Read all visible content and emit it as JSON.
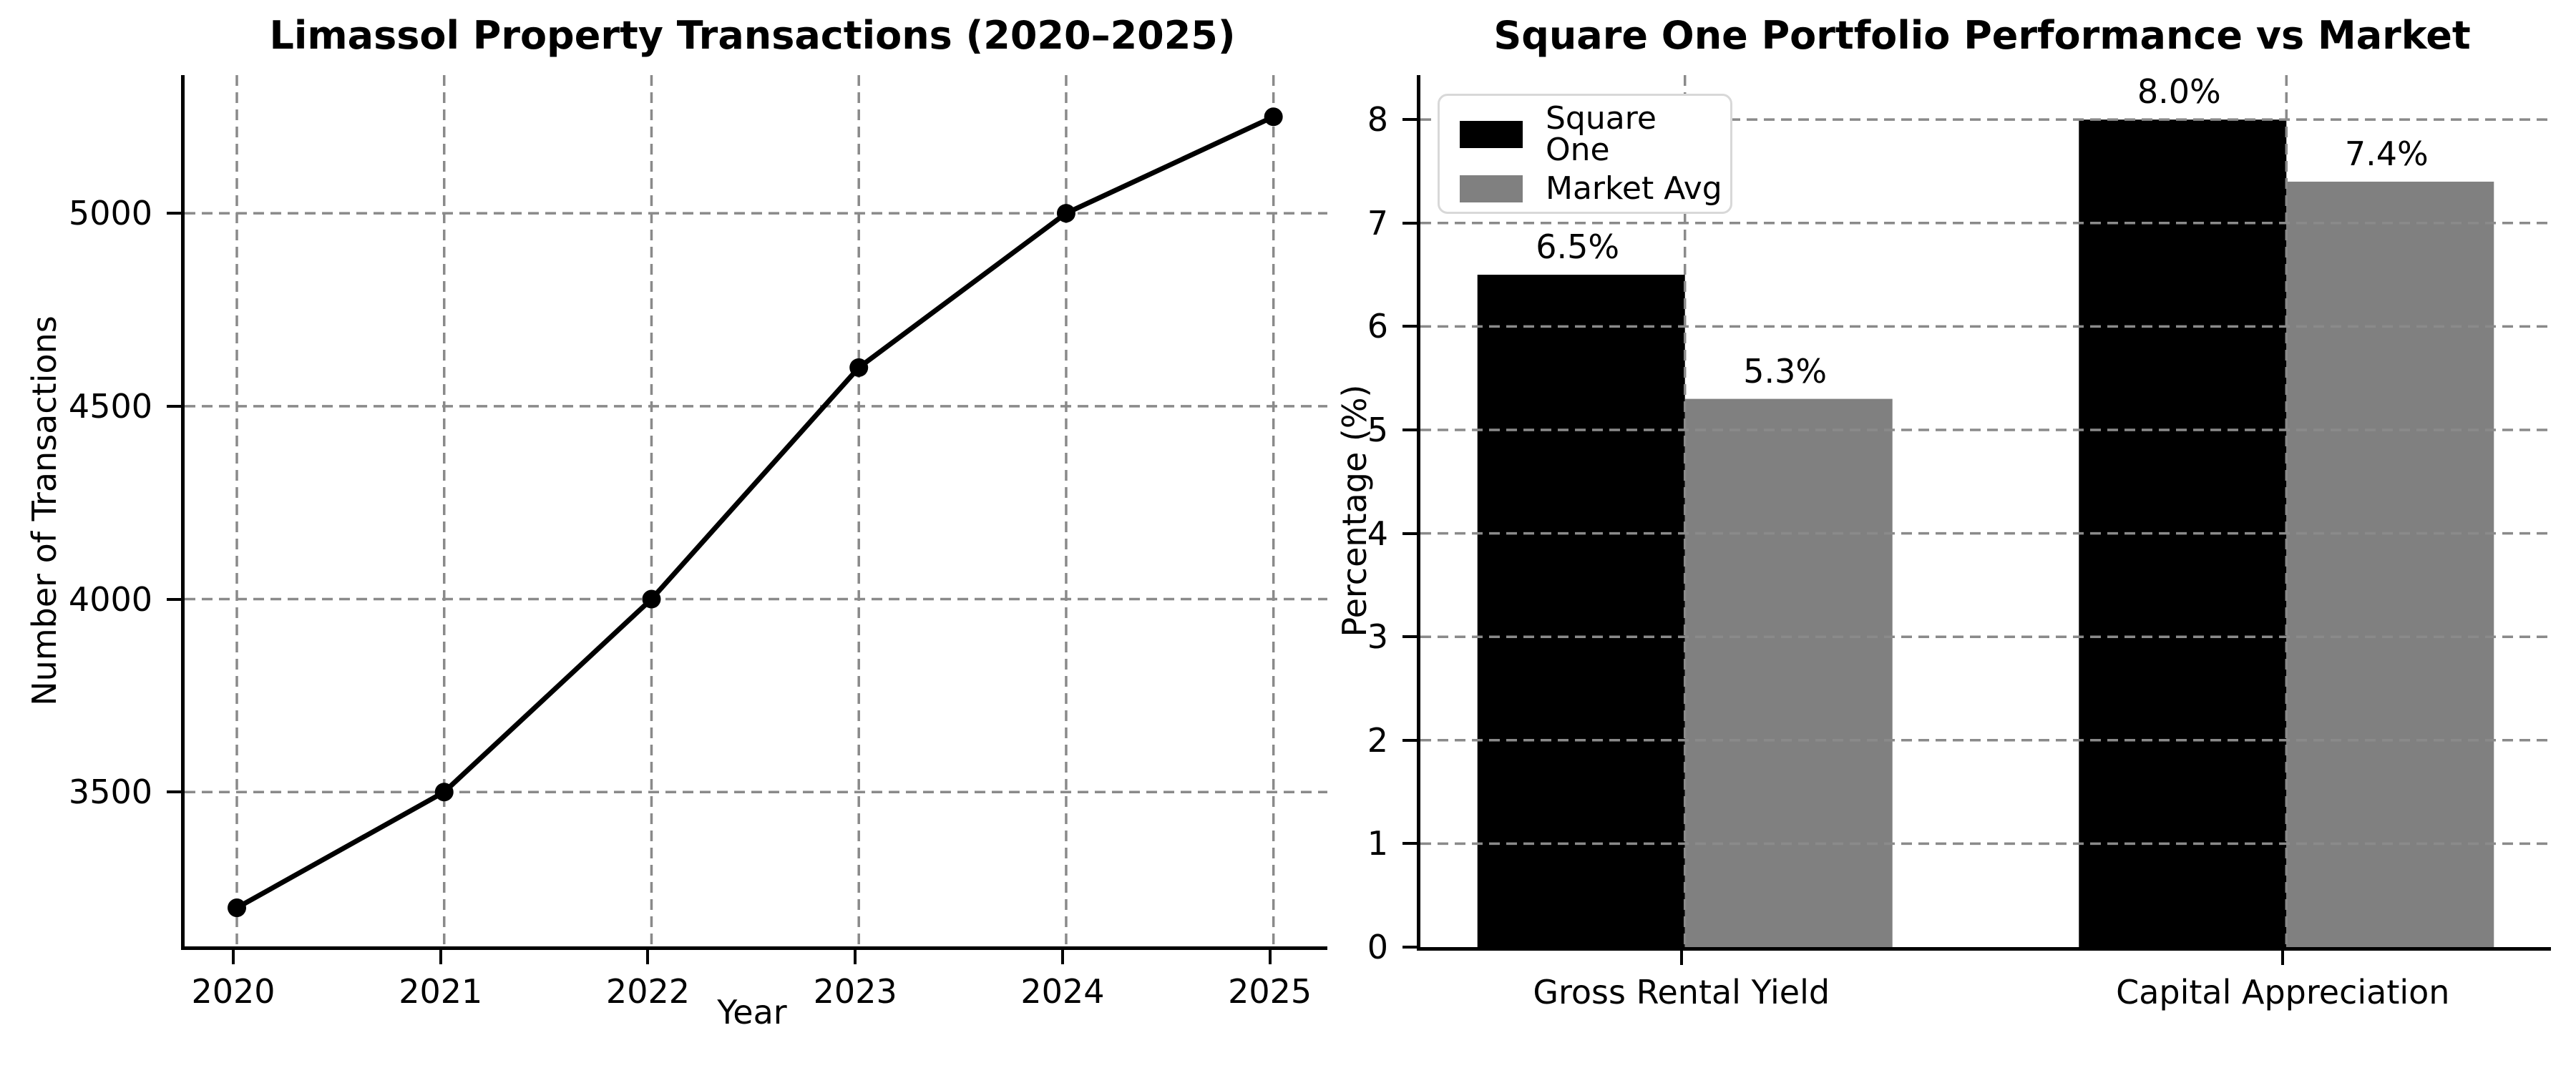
{
  "figure": {
    "background": "#ffffff",
    "grid_color": "#8a8a8a",
    "spine_color": "#000000"
  },
  "chart_data": [
    {
      "type": "line",
      "title": "Limassol Property Transactions (2020–2025)",
      "xlabel": "Year",
      "ylabel": "Number of Transactions",
      "x": [
        2020,
        2021,
        2022,
        2023,
        2024,
        2025
      ],
      "values": [
        3200,
        3500,
        4000,
        4600,
        5000,
        5250
      ],
      "xtick_labels": [
        "2020",
        "2021",
        "2022",
        "2023",
        "2024",
        "2025"
      ],
      "yticks": [
        3500,
        4000,
        4500,
        5000
      ],
      "xlim": [
        2019.748,
        2025.26
      ],
      "ylim": [
        3100,
        5358
      ],
      "grid": true,
      "line_color": "#000000",
      "marker": "circle"
    },
    {
      "type": "bar",
      "title": "Square One Portfolio Performance vs Market",
      "ylabel": "Percentage (%)",
      "categories": [
        "Gross Rental Yield",
        "Capital Appreciation"
      ],
      "series": [
        {
          "name": "Square One",
          "color": "#000000",
          "values": [
            6.5,
            8.0
          ],
          "labels": [
            "6.5%",
            "8.0%"
          ]
        },
        {
          "name": "Market Avg",
          "color": "#808080",
          "values": [
            5.3,
            7.4
          ],
          "labels": [
            "5.3%",
            "7.4%"
          ]
        }
      ],
      "yticks": [
        0,
        1,
        2,
        3,
        4,
        5,
        6,
        7,
        8
      ],
      "ylim": [
        0,
        8.43
      ],
      "grid": true,
      "legend_position": "upper left"
    }
  ]
}
